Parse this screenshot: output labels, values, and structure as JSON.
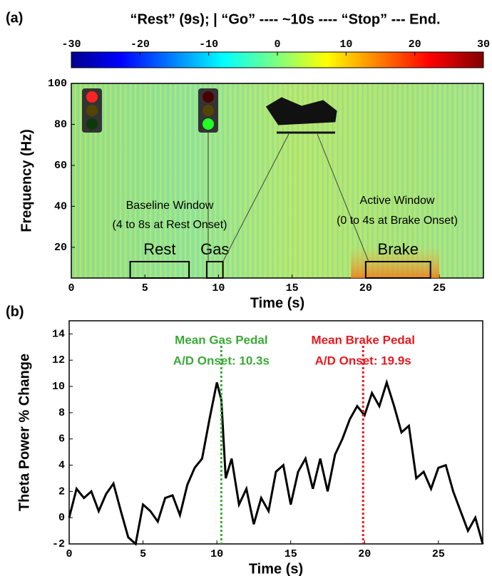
{
  "chart_data": [
    {
      "type": "spectrogram",
      "panel_label": "(a)",
      "title": "“Rest” (9s);  | “Go”  ---- ~10s ----  “Stop” ---  End.",
      "colorbar": {
        "clim": [
          -30,
          30
        ],
        "ticks": [
          -30,
          -20,
          -10,
          0,
          10,
          20,
          30
        ]
      },
      "xlabel": "Time (s)",
      "ylabel": "Frequency (Hz)",
      "xlim": [
        0,
        28
      ],
      "xticks": [
        0,
        5,
        10,
        15,
        20,
        25
      ],
      "ylim": [
        5,
        100
      ],
      "yticks": [
        20,
        40,
        60,
        80,
        100
      ],
      "windows": [
        {
          "label": "Rest",
          "xlim": [
            4,
            8
          ]
        },
        {
          "label": "Gas",
          "xlim": [
            9.2,
            10.3
          ]
        },
        {
          "label": "Brake",
          "xlim": [
            20,
            24.4
          ]
        }
      ],
      "window_ylim": [
        5,
        13
      ],
      "annotations": [
        "Baseline Window",
        "(4 to 8s at Rest Onset)",
        "Active Window",
        "(0 to 4s at Brake Onset)"
      ]
    },
    {
      "type": "line",
      "panel_label": "(b)",
      "xlabel": "Time (s)",
      "ylabel": "Theta Power % Change",
      "xlim": [
        0,
        28
      ],
      "xticks": [
        0,
        5,
        10,
        15,
        20,
        25
      ],
      "ylim": [
        -2,
        15
      ],
      "yticks": [
        -2,
        0,
        2,
        4,
        6,
        8,
        10,
        12,
        14
      ],
      "series": [
        {
          "color": "#000000",
          "x": [
            0,
            0.5,
            1,
            1.5,
            2,
            2.5,
            3,
            3.5,
            4,
            4.5,
            5,
            5.5,
            6,
            6.5,
            7,
            7.5,
            8,
            8.5,
            9,
            9.5,
            10,
            10.3,
            10.6,
            11,
            11.5,
            12,
            12.5,
            13,
            13.5,
            14,
            14.5,
            15,
            15.5,
            16,
            16.5,
            17,
            17.5,
            18,
            18.5,
            19,
            19.5,
            20,
            20.5,
            21,
            21.5,
            22,
            22.5,
            23,
            23.5,
            24,
            24.5,
            25,
            25.5,
            26,
            26.5,
            27,
            27.5,
            28
          ],
          "values": [
            0,
            2.2,
            1.5,
            2,
            0.5,
            1.8,
            2.6,
            0.5,
            -1.5,
            -2,
            1,
            0.5,
            -0.3,
            1.5,
            1.7,
            0.2,
            2.5,
            3.8,
            4.5,
            7.5,
            10.3,
            9,
            3,
            4.5,
            1,
            2.2,
            -0.5,
            1.5,
            0.5,
            3.5,
            4,
            1,
            3.5,
            4.5,
            2.2,
            4.5,
            2,
            4.8,
            6,
            7.5,
            8.5,
            7.8,
            9.5,
            8.5,
            10.3,
            8.5,
            6.5,
            7,
            3,
            3.5,
            2.2,
            3.8,
            4,
            2,
            0.5,
            -1,
            0,
            -2
          ]
        }
      ],
      "markers": [
        {
          "label": [
            "Mean Gas Pedal",
            "A/D Onset: 10.3s"
          ],
          "x": 10.3,
          "color": "#3aaa35"
        },
        {
          "label": [
            "Mean Brake Pedal",
            "A/D Onset: 19.9s"
          ],
          "x": 19.9,
          "color": "#e8191e"
        }
      ]
    }
  ]
}
